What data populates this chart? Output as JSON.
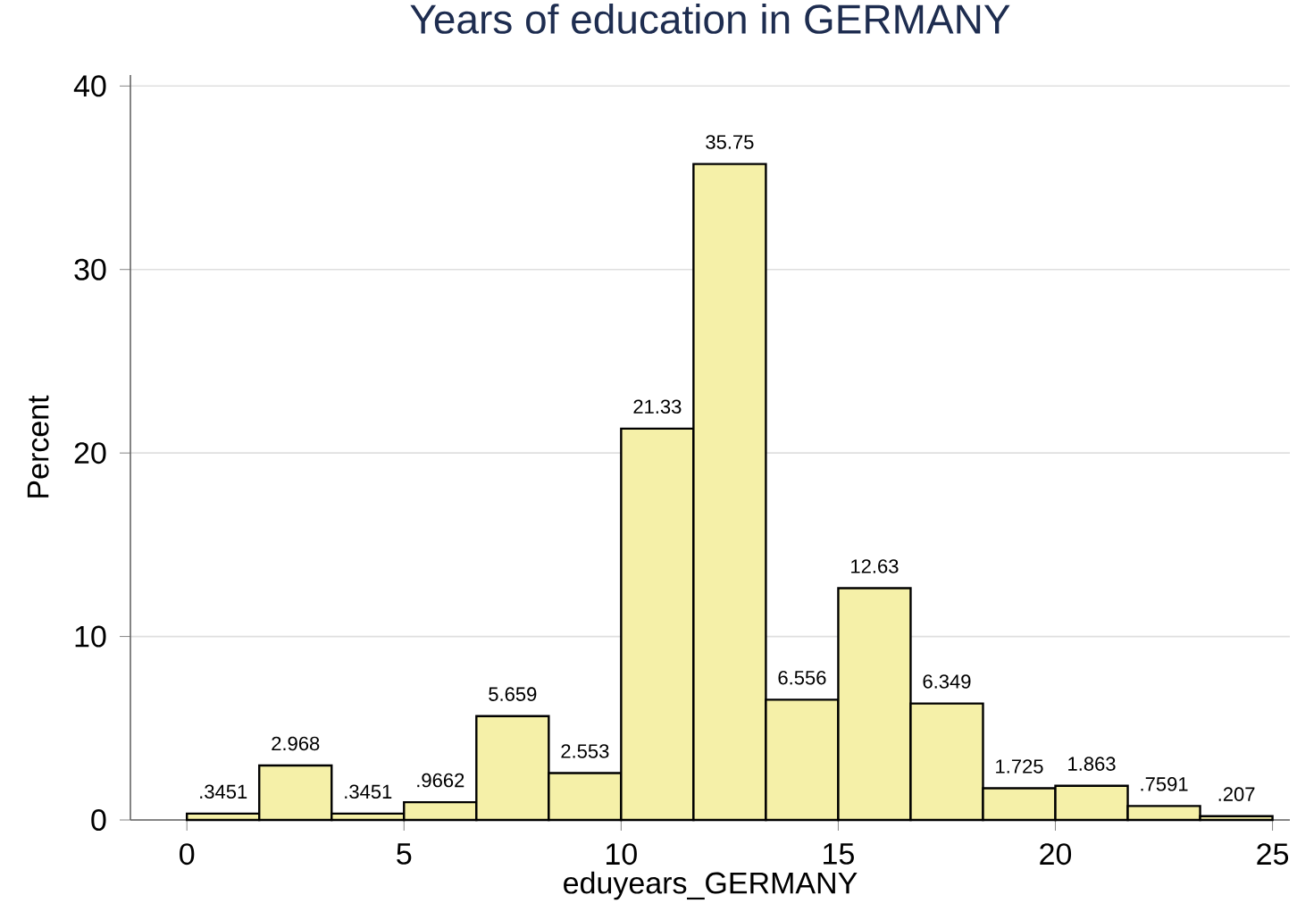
{
  "chart_data": {
    "type": "histogram",
    "title": "Years of education in GERMANY",
    "xlabel": "eduyears_GERMANY",
    "ylabel": "Percent",
    "bins": [
      0,
      1.6667,
      3.3333,
      5,
      6.6667,
      8.3333,
      10,
      11.6667,
      13.3333,
      15,
      16.6667,
      18.3333,
      20,
      21.6667,
      23.3333,
      25
    ],
    "values": [
      0.3451,
      2.968,
      0.3451,
      0.9662,
      5.659,
      2.553,
      21.33,
      35.75,
      6.556,
      12.63,
      6.349,
      1.725,
      1.863,
      0.7591,
      0.207
    ],
    "value_labels": [
      ".3451",
      "2.968",
      ".3451",
      ".9662",
      "5.659",
      "2.553",
      "21.33",
      "35.75",
      "6.556",
      "12.63",
      "6.349",
      "1.725",
      "1.863",
      ".7591",
      ".207"
    ],
    "color": "#f5f0a8",
    "xlim": [
      -1.3,
      25.4
    ],
    "ylim": [
      0,
      40.6
    ],
    "xticks": [
      0,
      5,
      10,
      15,
      20,
      25
    ],
    "yticks": [
      0,
      10,
      20,
      30,
      40
    ],
    "grid": "y"
  }
}
